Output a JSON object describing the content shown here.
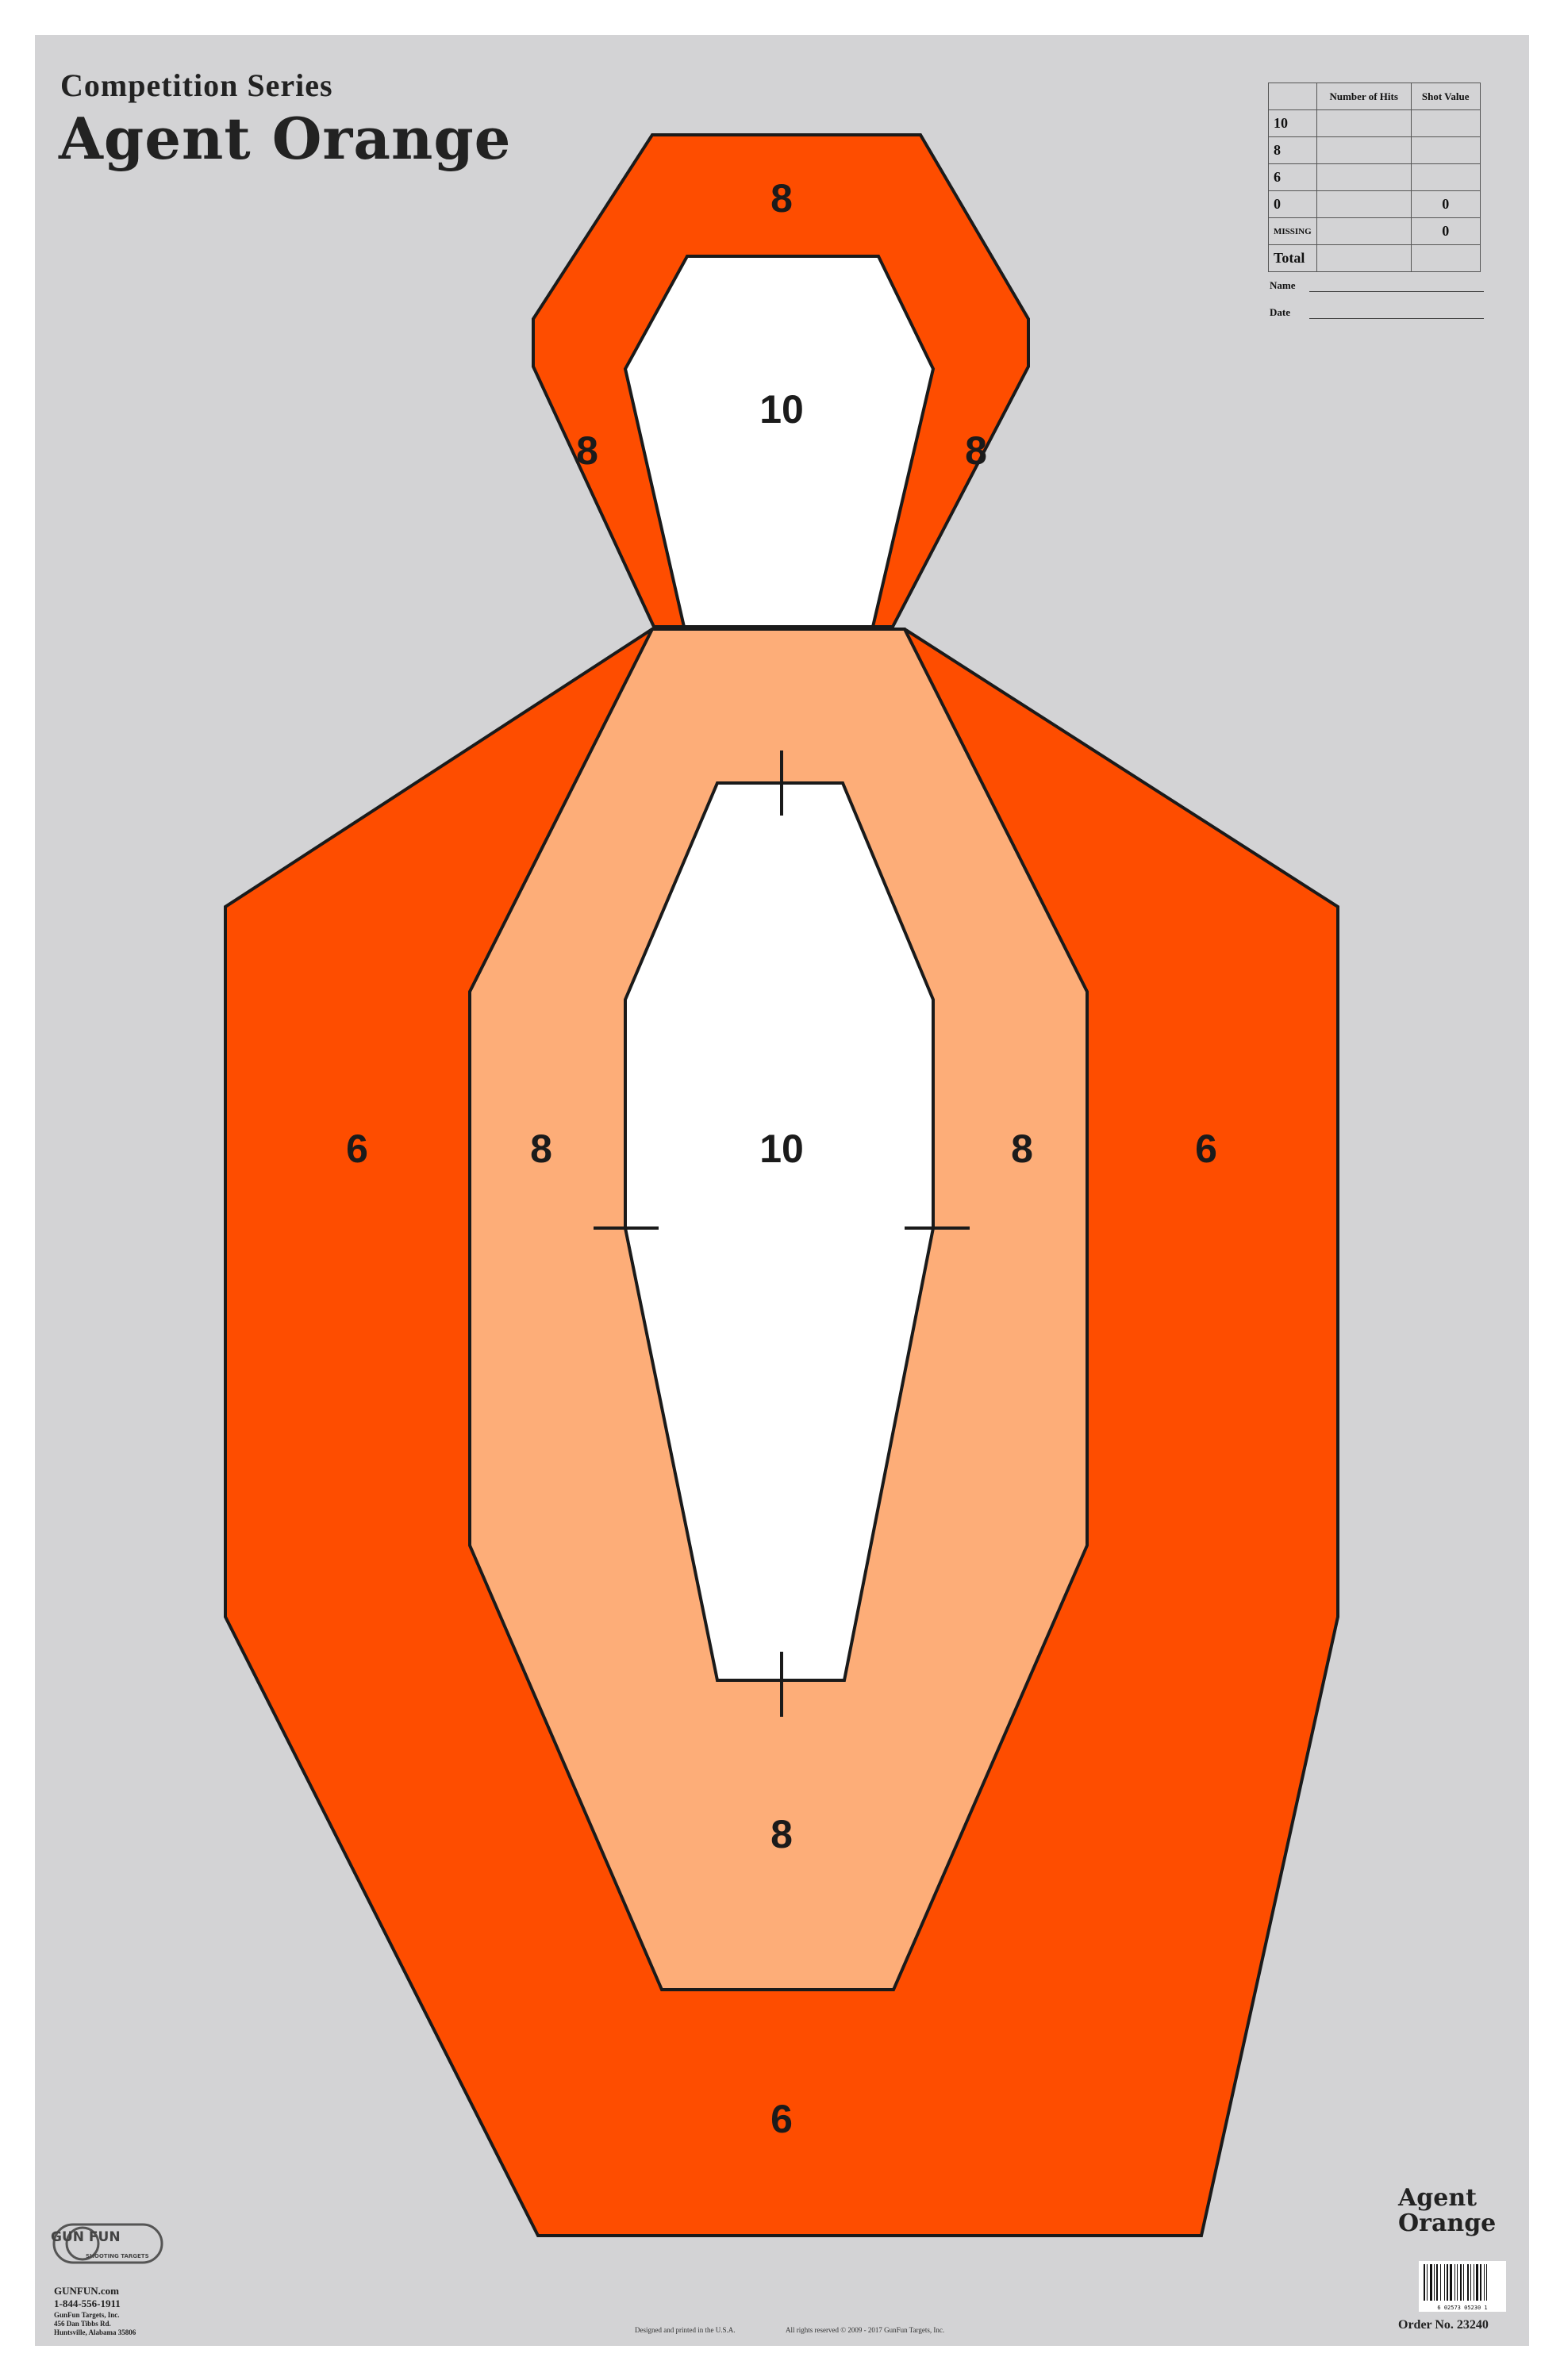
{
  "header": {
    "series": "Competition Series",
    "title": "Agent Orange"
  },
  "score_table": {
    "headers": [
      "",
      "Number of Hits",
      "Shot Value"
    ],
    "rows": [
      {
        "label": "10",
        "hits": "",
        "value": ""
      },
      {
        "label": "8",
        "hits": "",
        "value": ""
      },
      {
        "label": "6",
        "hits": "",
        "value": ""
      },
      {
        "label": "0",
        "hits": "",
        "value": "0"
      },
      {
        "label": "MISSING",
        "hits": "",
        "value": "0"
      },
      {
        "label": "Total",
        "hits": "",
        "value": ""
      }
    ]
  },
  "form": {
    "name_label": "Name",
    "date_label": "Date"
  },
  "target": {
    "colors": {
      "outer": "#fe4d00",
      "middle": "#fdad78",
      "center": "#ffffff",
      "outline": "#1a1a1a",
      "background": "#d3d3d5"
    },
    "head_labels": {
      "top": "8",
      "left": "8",
      "right": "8",
      "center": "10"
    },
    "body_labels": {
      "outer_left": "6",
      "middle_left": "8",
      "center": "10",
      "middle_right": "8",
      "outer_right": "6",
      "middle_bottom": "8",
      "outer_bottom": "6"
    }
  },
  "branding": {
    "logo_text": "GUN FUN",
    "logo_sub": "SHOOTING TARGETS",
    "website": "GUNFUN.com",
    "phone": "1-844-556-1911",
    "company": "GunFun Targets, Inc.",
    "address": "456 Dan Tibbs Rd.",
    "city": "Huntsville, Alabama 35806"
  },
  "footer": {
    "made_in": "Designed and printed in the U.S.A.",
    "rights": "All rights reserved © 2009 - 2017 GunFun Targets, Inc."
  },
  "product": {
    "title_line1": "Agent",
    "title_line2": "Orange",
    "barcode_digits": "6 02573 05230 1",
    "order_no": "Order No. 23240"
  }
}
